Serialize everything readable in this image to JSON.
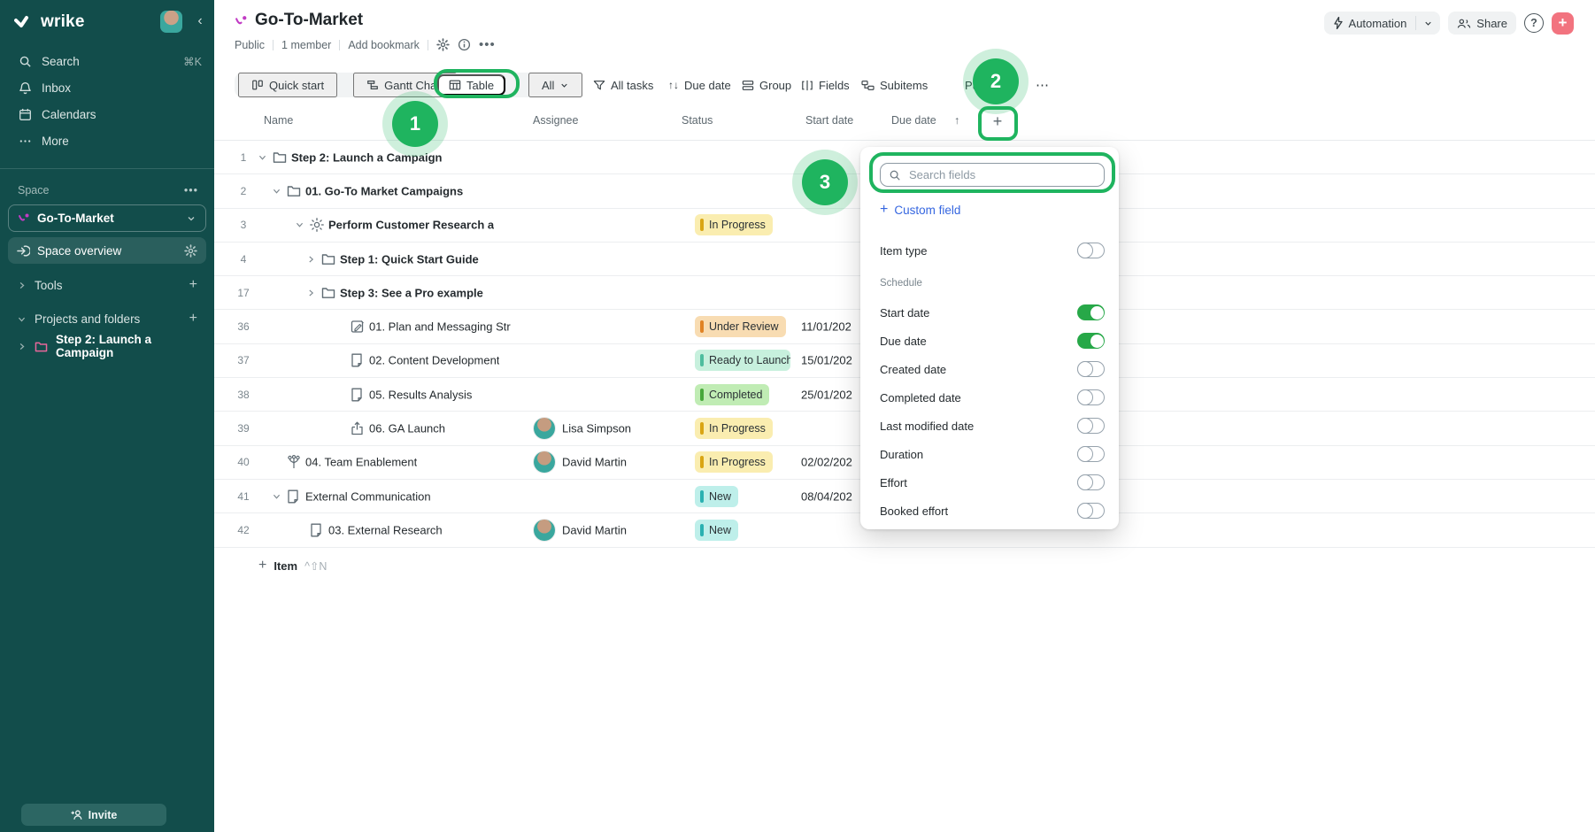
{
  "sidebar": {
    "logo_text": "wrike",
    "collapse_icon": "‹",
    "nav": [
      {
        "icon": "search-icon",
        "label": "Search",
        "shortcut": "⌘K"
      },
      {
        "icon": "bell-icon",
        "label": "Inbox",
        "shortcut": ""
      },
      {
        "icon": "calendar-icon",
        "label": "Calendars",
        "shortcut": ""
      },
      {
        "icon": "dots-icon",
        "label": "More",
        "shortcut": ""
      }
    ],
    "space_section_label": "Space",
    "space_name": "Go-To-Market",
    "space_overview_label": "Space overview",
    "tools_label": "Tools",
    "projects_label": "Projects and folders",
    "project_item_label": "Step 2: Launch a Campaign",
    "invite_label": "Invite"
  },
  "header": {
    "title": "Go-To-Market",
    "meta": [
      "Public",
      "1 member",
      "Add bookmark"
    ],
    "automation_label": "Automation",
    "share_label": "Share",
    "help_label": "?",
    "add_label": "+"
  },
  "toolbar": {
    "views": [
      "Quick start",
      "Gantt Chart",
      "Table"
    ],
    "view_filter": "All",
    "filter_label": "All tasks",
    "sort_label": "Due date",
    "group_label": "Group",
    "fields_label": "Fields",
    "subitems_label": "Subitems",
    "public_link_label": "Public link",
    "more_label": "⋯"
  },
  "table": {
    "columns": [
      "Name",
      "Assignee",
      "Status",
      "Start date",
      "Due date"
    ],
    "sorted_column": "Due date",
    "add_column_label": "+",
    "add_item_label": "Item",
    "add_item_shortcut": "^⇧N",
    "rows": [
      {
        "num": "1",
        "level": 0,
        "chevron": "down",
        "icon": "folder-icon",
        "name": "Step 2: Launch a Campaign",
        "bold": true
      },
      {
        "num": "2",
        "level": 1,
        "chevron": "down",
        "icon": "folder-icon",
        "name": "01. Go-To Market Campaigns",
        "bold": true
      },
      {
        "num": "3",
        "level": 2,
        "chevron": "down",
        "icon": "sun-icon",
        "name": "Perform Customer Research a",
        "bold": true,
        "status": "In Progress"
      },
      {
        "num": "4",
        "level": 3,
        "chevron": "right",
        "icon": "folder-icon",
        "name": "Step 1: Quick Start Guide",
        "bold": true
      },
      {
        "num": "17",
        "level": 3,
        "chevron": "right",
        "icon": "folder-icon",
        "name": "Step 3: See a Pro example",
        "bold": true
      },
      {
        "num": "36",
        "level": 4,
        "chevron": null,
        "icon": "doc-edit-icon",
        "name": "01. Plan and Messaging Str",
        "bold": false,
        "status": "Under Review",
        "start_date": "11/01/202"
      },
      {
        "num": "37",
        "level": 4,
        "chevron": null,
        "icon": "doc-icon",
        "name": "02. Content Development",
        "bold": false,
        "status": "Ready to Launch",
        "start_date": "15/01/202"
      },
      {
        "num": "38",
        "level": 4,
        "chevron": null,
        "icon": "doc-icon",
        "name": "05. Results Analysis",
        "bold": false,
        "status": "Completed",
        "start_date": "25/01/202"
      },
      {
        "num": "39",
        "level": 4,
        "chevron": null,
        "icon": "share-icon",
        "name": "06. GA Launch",
        "bold": false,
        "assignee": "Lisa Simpson",
        "status": "In Progress"
      },
      {
        "num": "40",
        "level": 1,
        "chevron": null,
        "icon": "workflow-icon",
        "name": "04. Team Enablement",
        "bold": false,
        "assignee": "David Martin",
        "status": "In Progress",
        "start_date": "02/02/202"
      },
      {
        "num": "41",
        "level": 1,
        "chevron": "down",
        "icon": "doc-icon",
        "name": "External Communication",
        "bold": false,
        "status": "New",
        "start_date": "08/04/202"
      },
      {
        "num": "42",
        "level": 2,
        "chevron": null,
        "icon": "doc-icon",
        "name": "03. External Research",
        "bold": false,
        "assignee": "David Martin",
        "status": "New"
      }
    ]
  },
  "fields_panel": {
    "search_placeholder": "Search fields",
    "custom_field_label": "Custom field",
    "items": [
      {
        "label": "Item type",
        "on": false
      },
      {
        "section": "Schedule"
      },
      {
        "label": "Start date",
        "on": true
      },
      {
        "label": "Due date",
        "on": true
      },
      {
        "label": "Created date",
        "on": false
      },
      {
        "label": "Completed date",
        "on": false
      },
      {
        "label": "Last modified date",
        "on": false
      },
      {
        "label": "Duration",
        "on": false
      },
      {
        "label": "Effort",
        "on": false
      },
      {
        "label": "Booked effort",
        "on": false
      }
    ]
  },
  "annotations": {
    "steps": [
      "1",
      "2",
      "3"
    ]
  },
  "colors": {
    "accent_green": "#1fb45f",
    "sidebar_teal": "#124d4b",
    "coral_plus": "#f2737f",
    "link_blue": "#3566e0",
    "space_magenta": "#c13bc4",
    "toggle_on": "#27a848",
    "status_styles": {
      "In Progress": {
        "bg": "#faedb0",
        "bar": "#d9a514"
      },
      "Under Review": {
        "bg": "#f8dcb2",
        "bar": "#e08325"
      },
      "Ready to Launch": {
        "bg": "#c7f0dd",
        "bar": "#4ebd9e"
      },
      "Completed": {
        "bg": "#c0ecb4",
        "bar": "#47a83a"
      },
      "New": {
        "bg": "#beefea",
        "bar": "#2ab1b1"
      }
    }
  }
}
